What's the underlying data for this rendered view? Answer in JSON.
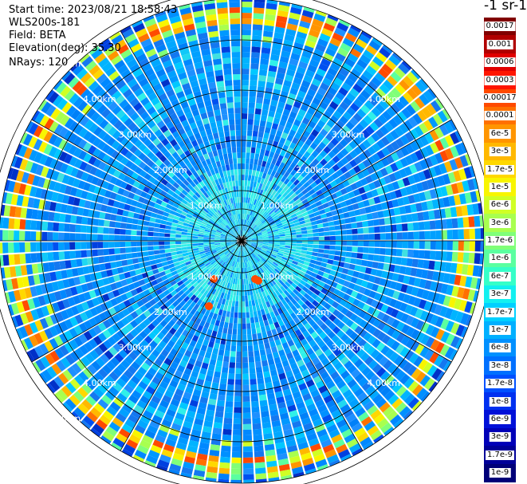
{
  "header": {
    "start_time": "Start time: 2023/08/21 18:58:43",
    "device": "WLS200s-181",
    "field": "Field: BETA",
    "elevation": "Elevation(deg): 35.30",
    "nrays": "NRays: 120"
  },
  "colorbar": {
    "unit": "-1 sr-1",
    "levels": [
      {
        "label": "0.0017",
        "color": "#800000"
      },
      {
        "label": "0.001",
        "color": "#b00000"
      },
      {
        "label": "0.0006",
        "color": "#e00000"
      },
      {
        "label": "0.0003",
        "color": "#ff1500"
      },
      {
        "label": "0.00017",
        "color": "#ff4a00"
      },
      {
        "label": "0.0001",
        "color": "#ff7000"
      },
      {
        "label": "6e-5",
        "color": "#ff9500"
      },
      {
        "label": "3e-5",
        "color": "#ffb800"
      },
      {
        "label": "1.7e-5",
        "color": "#ffd800"
      },
      {
        "label": "1e-5",
        "color": "#f8f500"
      },
      {
        "label": "6e-6",
        "color": "#d0ff25"
      },
      {
        "label": "3e-6",
        "color": "#a8ff4f"
      },
      {
        "label": "1.7e-6",
        "color": "#80ff78"
      },
      {
        "label": "1e-6",
        "color": "#5affa0"
      },
      {
        "label": "6e-7",
        "color": "#35ffc8"
      },
      {
        "label": "3e-7",
        "color": "#12f0f0"
      },
      {
        "label": "1.7e-7",
        "color": "#00d0ff"
      },
      {
        "label": "1e-7",
        "color": "#00b0ff"
      },
      {
        "label": "6e-8",
        "color": "#0090ff"
      },
      {
        "label": "3e-8",
        "color": "#0070ff"
      },
      {
        "label": "1.7e-8",
        "color": "#0050ff"
      },
      {
        "label": "1e-8",
        "color": "#0030f0"
      },
      {
        "label": "6e-9",
        "color": "#0010d8"
      },
      {
        "label": "3e-9",
        "color": "#0000b8"
      },
      {
        "label": "1.7e-9",
        "color": "#000098"
      },
      {
        "label": "1e-9",
        "color": "#000078"
      }
    ]
  },
  "range_rings": {
    "labels": [
      "1.00km",
      "2.00km",
      "3.00km",
      "4.00km",
      "5.00km"
    ]
  }
}
